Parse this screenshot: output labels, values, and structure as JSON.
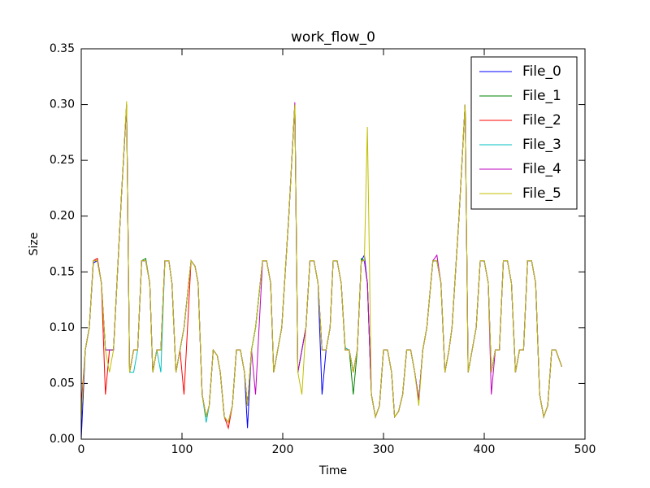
{
  "chart_data": {
    "type": "line",
    "title": "work_flow_0",
    "x_label": "Time",
    "y_label": "Size",
    "x": [
      0,
      4,
      8,
      12,
      16,
      20,
      24,
      28,
      32,
      36,
      40,
      45,
      48,
      52,
      56,
      60,
      64,
      68,
      71,
      75,
      79,
      83,
      87,
      90,
      94,
      98,
      102,
      109,
      113,
      116,
      120,
      124,
      127,
      131,
      135,
      138,
      142,
      146,
      150,
      154,
      158,
      162,
      165,
      169,
      173,
      180,
      184,
      188,
      191,
      195,
      199,
      206,
      212,
      215,
      219,
      223,
      227,
      231,
      235,
      239,
      243,
      247,
      250,
      254,
      258,
      262,
      266,
      270,
      274,
      278,
      281,
      284,
      288,
      292,
      296,
      300,
      304,
      308,
      311,
      315,
      319,
      323,
      327,
      331,
      335,
      339,
      343,
      349,
      353,
      357,
      361,
      365,
      368,
      375,
      381,
      384,
      388,
      392,
      396,
      400,
      404,
      407,
      411,
      415,
      419,
      423,
      427,
      431,
      435,
      439,
      443,
      447,
      451,
      455,
      459,
      463,
      467,
      471,
      477
    ],
    "series": [
      {
        "name": "File_0",
        "color": "#0000ff",
        "values": [
          0.0,
          0.08,
          0.1,
          0.158,
          0.16,
          0.14,
          0.08,
          0.08,
          0.08,
          0.15,
          0.22,
          0.3,
          0.06,
          0.08,
          0.08,
          0.16,
          0.16,
          0.14,
          0.06,
          0.08,
          0.08,
          0.16,
          0.16,
          0.14,
          0.06,
          0.08,
          0.1,
          0.16,
          0.155,
          0.14,
          0.04,
          0.02,
          0.03,
          0.08,
          0.075,
          0.06,
          0.02,
          0.015,
          0.03,
          0.08,
          0.08,
          0.06,
          0.01,
          0.08,
          0.1,
          0.16,
          0.16,
          0.14,
          0.06,
          0.08,
          0.1,
          0.2,
          0.3,
          0.06,
          0.08,
          0.1,
          0.16,
          0.16,
          0.14,
          0.04,
          0.08,
          0.1,
          0.16,
          0.16,
          0.14,
          0.08,
          0.08,
          0.06,
          0.08,
          0.16,
          0.165,
          0.14,
          0.04,
          0.02,
          0.03,
          0.08,
          0.08,
          0.06,
          0.02,
          0.025,
          0.04,
          0.08,
          0.08,
          0.06,
          0.035,
          0.08,
          0.1,
          0.16,
          0.16,
          0.14,
          0.06,
          0.08,
          0.1,
          0.2,
          0.3,
          0.06,
          0.08,
          0.1,
          0.16,
          0.16,
          0.14,
          0.06,
          0.08,
          0.08,
          0.16,
          0.16,
          0.14,
          0.06,
          0.08,
          0.08,
          0.16,
          0.16,
          0.14,
          0.04,
          0.02,
          0.03,
          0.08,
          0.08,
          0.065
        ]
      },
      {
        "name": "File_1",
        "color": "#008000",
        "values": [
          0.02,
          0.08,
          0.1,
          0.16,
          0.162,
          0.14,
          0.08,
          0.08,
          0.08,
          0.15,
          0.22,
          0.3,
          0.06,
          0.08,
          0.08,
          0.16,
          0.162,
          0.14,
          0.06,
          0.08,
          0.08,
          0.16,
          0.16,
          0.14,
          0.06,
          0.08,
          0.1,
          0.16,
          0.155,
          0.14,
          0.04,
          0.02,
          0.03,
          0.08,
          0.075,
          0.06,
          0.02,
          0.015,
          0.03,
          0.08,
          0.08,
          0.06,
          0.03,
          0.08,
          0.1,
          0.16,
          0.16,
          0.14,
          0.06,
          0.08,
          0.1,
          0.2,
          0.3,
          0.06,
          0.08,
          0.1,
          0.16,
          0.16,
          0.14,
          0.08,
          0.08,
          0.1,
          0.16,
          0.16,
          0.14,
          0.08,
          0.08,
          0.04,
          0.08,
          0.162,
          0.16,
          0.14,
          0.04,
          0.02,
          0.03,
          0.08,
          0.08,
          0.06,
          0.02,
          0.025,
          0.04,
          0.08,
          0.08,
          0.06,
          0.035,
          0.08,
          0.1,
          0.16,
          0.16,
          0.14,
          0.06,
          0.08,
          0.1,
          0.2,
          0.3,
          0.06,
          0.08,
          0.1,
          0.16,
          0.16,
          0.14,
          0.06,
          0.08,
          0.08,
          0.16,
          0.16,
          0.14,
          0.06,
          0.08,
          0.08,
          0.16,
          0.16,
          0.14,
          0.04,
          0.02,
          0.03,
          0.08,
          0.08,
          0.065
        ]
      },
      {
        "name": "File_2",
        "color": "#ff0000",
        "values": [
          0.03,
          0.08,
          0.1,
          0.16,
          0.162,
          0.14,
          0.04,
          0.08,
          0.08,
          0.15,
          0.22,
          0.3,
          0.06,
          0.08,
          0.08,
          0.16,
          0.16,
          0.14,
          0.06,
          0.08,
          0.08,
          0.16,
          0.16,
          0.14,
          0.06,
          0.08,
          0.04,
          0.16,
          0.155,
          0.14,
          0.04,
          0.02,
          0.03,
          0.08,
          0.075,
          0.06,
          0.02,
          0.01,
          0.03,
          0.08,
          0.08,
          0.06,
          0.03,
          0.08,
          0.1,
          0.16,
          0.16,
          0.14,
          0.06,
          0.08,
          0.1,
          0.2,
          0.3,
          0.06,
          0.08,
          0.1,
          0.16,
          0.16,
          0.14,
          0.08,
          0.08,
          0.1,
          0.16,
          0.16,
          0.14,
          0.08,
          0.08,
          0.06,
          0.08,
          0.16,
          0.16,
          0.14,
          0.04,
          0.02,
          0.03,
          0.08,
          0.08,
          0.06,
          0.02,
          0.025,
          0.04,
          0.08,
          0.08,
          0.06,
          0.035,
          0.08,
          0.1,
          0.16,
          0.16,
          0.14,
          0.06,
          0.08,
          0.1,
          0.2,
          0.3,
          0.06,
          0.08,
          0.1,
          0.16,
          0.16,
          0.14,
          0.06,
          0.08,
          0.08,
          0.16,
          0.16,
          0.14,
          0.06,
          0.08,
          0.08,
          0.16,
          0.16,
          0.14,
          0.04,
          0.02,
          0.03,
          0.08,
          0.08,
          0.065
        ]
      },
      {
        "name": "File_3",
        "color": "#00bfbf",
        "values": [
          0.02,
          0.08,
          0.1,
          0.16,
          0.16,
          0.14,
          0.08,
          0.08,
          0.08,
          0.15,
          0.22,
          0.3,
          0.06,
          0.06,
          0.08,
          0.16,
          0.16,
          0.14,
          0.06,
          0.08,
          0.06,
          0.16,
          0.16,
          0.14,
          0.06,
          0.08,
          0.1,
          0.16,
          0.155,
          0.14,
          0.04,
          0.015,
          0.03,
          0.08,
          0.075,
          0.06,
          0.02,
          0.015,
          0.03,
          0.08,
          0.08,
          0.06,
          0.03,
          0.08,
          0.1,
          0.16,
          0.16,
          0.14,
          0.06,
          0.08,
          0.1,
          0.2,
          0.3,
          0.06,
          0.08,
          0.1,
          0.16,
          0.16,
          0.14,
          0.08,
          0.08,
          0.1,
          0.16,
          0.16,
          0.14,
          0.082,
          0.08,
          0.06,
          0.08,
          0.16,
          0.16,
          0.14,
          0.04,
          0.02,
          0.03,
          0.08,
          0.08,
          0.06,
          0.02,
          0.025,
          0.04,
          0.08,
          0.08,
          0.06,
          0.035,
          0.08,
          0.1,
          0.16,
          0.16,
          0.14,
          0.06,
          0.08,
          0.1,
          0.2,
          0.3,
          0.06,
          0.08,
          0.1,
          0.16,
          0.16,
          0.14,
          0.06,
          0.08,
          0.08,
          0.16,
          0.16,
          0.14,
          0.06,
          0.08,
          0.08,
          0.16,
          0.16,
          0.14,
          0.04,
          0.02,
          0.03,
          0.08,
          0.08,
          0.065
        ]
      },
      {
        "name": "File_4",
        "color": "#bf00bf",
        "values": [
          0.02,
          0.08,
          0.1,
          0.16,
          0.16,
          0.14,
          0.08,
          0.08,
          0.08,
          0.15,
          0.22,
          0.3,
          0.06,
          0.08,
          0.08,
          0.16,
          0.16,
          0.14,
          0.06,
          0.08,
          0.08,
          0.16,
          0.16,
          0.14,
          0.06,
          0.08,
          0.1,
          0.16,
          0.155,
          0.14,
          0.04,
          0.02,
          0.03,
          0.08,
          0.075,
          0.06,
          0.02,
          0.015,
          0.03,
          0.08,
          0.08,
          0.06,
          0.03,
          0.08,
          0.04,
          0.16,
          0.16,
          0.14,
          0.06,
          0.08,
          0.1,
          0.2,
          0.302,
          0.06,
          0.08,
          0.1,
          0.16,
          0.16,
          0.14,
          0.08,
          0.08,
          0.1,
          0.16,
          0.16,
          0.14,
          0.08,
          0.08,
          0.06,
          0.08,
          0.16,
          0.16,
          0.14,
          0.04,
          0.02,
          0.03,
          0.08,
          0.08,
          0.06,
          0.02,
          0.025,
          0.04,
          0.08,
          0.08,
          0.06,
          0.035,
          0.08,
          0.1,
          0.16,
          0.165,
          0.14,
          0.06,
          0.08,
          0.1,
          0.2,
          0.3,
          0.06,
          0.08,
          0.1,
          0.16,
          0.16,
          0.14,
          0.04,
          0.08,
          0.08,
          0.16,
          0.16,
          0.14,
          0.06,
          0.08,
          0.08,
          0.16,
          0.16,
          0.14,
          0.04,
          0.02,
          0.03,
          0.08,
          0.08,
          0.065
        ]
      },
      {
        "name": "File_5",
        "color": "#bfbf00",
        "values": [
          0.02,
          0.08,
          0.1,
          0.16,
          0.16,
          0.14,
          0.08,
          0.06,
          0.08,
          0.15,
          0.22,
          0.303,
          0.06,
          0.08,
          0.08,
          0.16,
          0.16,
          0.14,
          0.06,
          0.08,
          0.08,
          0.16,
          0.16,
          0.14,
          0.06,
          0.08,
          0.1,
          0.16,
          0.155,
          0.14,
          0.04,
          0.02,
          0.03,
          0.08,
          0.075,
          0.06,
          0.02,
          0.015,
          0.03,
          0.08,
          0.08,
          0.06,
          0.03,
          0.08,
          0.1,
          0.16,
          0.16,
          0.14,
          0.06,
          0.08,
          0.1,
          0.2,
          0.3,
          0.06,
          0.04,
          0.1,
          0.16,
          0.16,
          0.14,
          0.08,
          0.08,
          0.1,
          0.16,
          0.16,
          0.14,
          0.08,
          0.08,
          0.06,
          0.08,
          0.16,
          0.16,
          0.28,
          0.04,
          0.02,
          0.03,
          0.08,
          0.08,
          0.06,
          0.02,
          0.025,
          0.04,
          0.08,
          0.08,
          0.06,
          0.03,
          0.08,
          0.1,
          0.16,
          0.16,
          0.14,
          0.06,
          0.08,
          0.1,
          0.2,
          0.3,
          0.06,
          0.08,
          0.1,
          0.16,
          0.16,
          0.14,
          0.06,
          0.08,
          0.08,
          0.16,
          0.16,
          0.14,
          0.06,
          0.08,
          0.08,
          0.16,
          0.16,
          0.14,
          0.04,
          0.02,
          0.03,
          0.08,
          0.08,
          0.065
        ]
      }
    ],
    "xlim": [
      0,
      500
    ],
    "xticks": [
      0,
      100,
      200,
      300,
      400,
      500
    ],
    "ylim": [
      0,
      0.35
    ],
    "yticks": [
      {
        "value": 0,
        "label": "0.00"
      },
      {
        "value": 0.05,
        "label": "0.05"
      },
      {
        "value": 0.1,
        "label": "0.10"
      },
      {
        "value": 0.15,
        "label": "0.15"
      },
      {
        "value": 0.2,
        "label": "0.20"
      },
      {
        "value": 0.25,
        "label": "0.25"
      },
      {
        "value": 0.3,
        "label": "0.30"
      },
      {
        "value": 0.35,
        "label": "0.35"
      }
    ],
    "grid": false,
    "legend": "upper right"
  }
}
